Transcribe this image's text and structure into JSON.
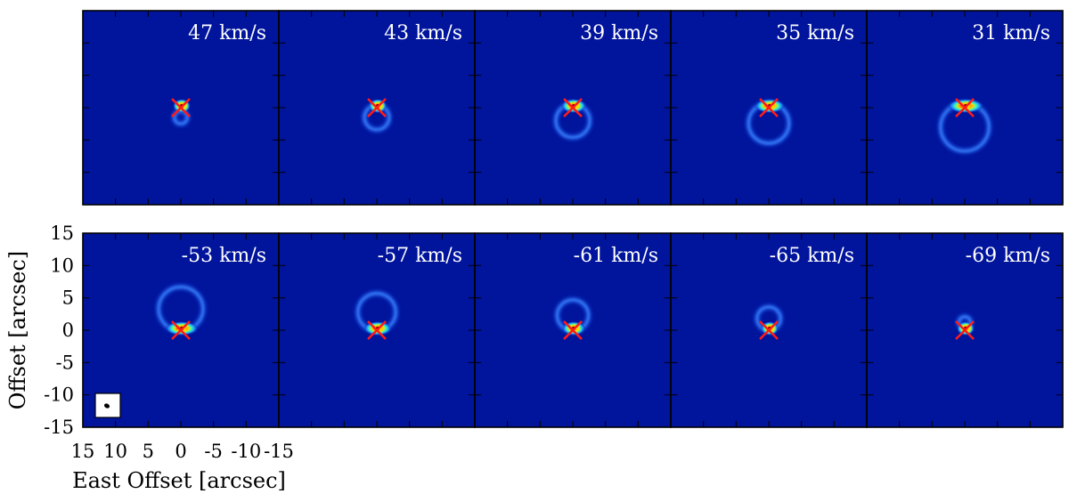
{
  "chart_data": {
    "type": "channel-map-grid",
    "rows": 2,
    "cols": 5,
    "xlabel": "East Offset [arcsec]",
    "ylabel": "Offset [arcsec]",
    "xlim": [
      15,
      -15
    ],
    "ylim": [
      -15,
      15
    ],
    "x_ticks": [
      15,
      10,
      5,
      0,
      -5,
      -10,
      -15
    ],
    "x_tick_labels": [
      "15",
      "10",
      "5",
      "0",
      "-5",
      "-10",
      "-15"
    ],
    "y_ticks": [
      15,
      10,
      5,
      0,
      -5,
      -10,
      -15
    ],
    "y_tick_labels": [
      "15",
      "10",
      "5",
      "0",
      "-5",
      "-10",
      "-15"
    ],
    "background_color": "#00149c",
    "marker": {
      "shape": "x",
      "color": "#ff1a1a"
    },
    "panels": [
      {
        "label": "47 km/s",
        "ring_center": [
          0,
          -1.5
        ],
        "ring_radius": 1.0,
        "marker": [
          0,
          0
        ],
        "cap_side": "top"
      },
      {
        "label": "43 km/s",
        "ring_center": [
          0,
          -1.5
        ],
        "ring_radius": 1.9,
        "marker": [
          0,
          0
        ],
        "cap_side": "top"
      },
      {
        "label": "39 km/s",
        "ring_center": [
          0,
          -2.0
        ],
        "ring_radius": 2.6,
        "marker": [
          0,
          0
        ],
        "cap_side": "top"
      },
      {
        "label": "35 km/s",
        "ring_center": [
          0,
          -2.4
        ],
        "ring_radius": 3.1,
        "marker": [
          0,
          0
        ],
        "cap_side": "top"
      },
      {
        "label": "31 km/s",
        "ring_center": [
          0,
          -3.0
        ],
        "ring_radius": 3.7,
        "marker": [
          0,
          0
        ],
        "cap_side": "top"
      },
      {
        "label": "-53 km/s",
        "ring_center": [
          0,
          3.3
        ],
        "ring_radius": 3.4,
        "marker": [
          0,
          0
        ],
        "cap_side": "bottom"
      },
      {
        "label": "-57 km/s",
        "ring_center": [
          0,
          2.8
        ],
        "ring_radius": 2.9,
        "marker": [
          0,
          0
        ],
        "cap_side": "bottom"
      },
      {
        "label": "-61 km/s",
        "ring_center": [
          0,
          2.3
        ],
        "ring_radius": 2.4,
        "marker": [
          0,
          0
        ],
        "cap_side": "bottom"
      },
      {
        "label": "-65 km/s",
        "ring_center": [
          0,
          1.8
        ],
        "ring_radius": 1.8,
        "marker": [
          0,
          0
        ],
        "cap_side": "bottom"
      },
      {
        "label": "-69 km/s",
        "ring_center": [
          0,
          1.2
        ],
        "ring_radius": 0.9,
        "marker": [
          0,
          0
        ],
        "cap_side": "bottom"
      }
    ],
    "beam_inset": {
      "panel": 5
    }
  }
}
